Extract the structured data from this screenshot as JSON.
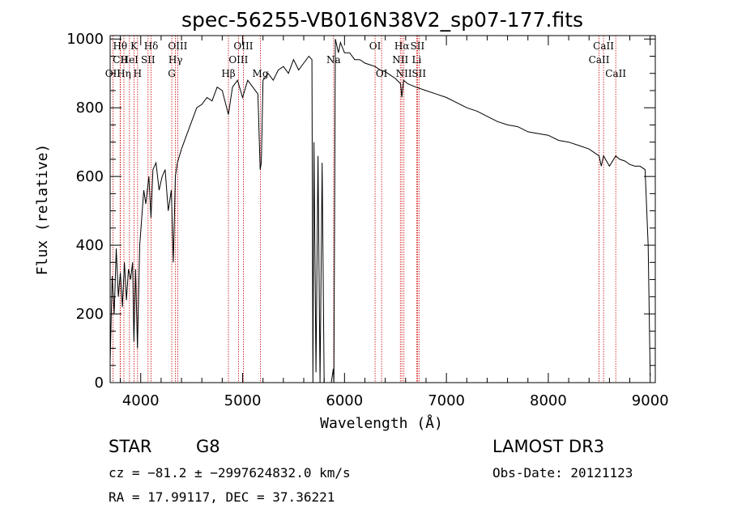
{
  "chart_data": {
    "type": "line",
    "title": "spec-56255-VB016N38V2_sp07-177.fits",
    "xlabel": "Wavelength (Å)",
    "ylabel": "Flux (relative)",
    "xlim": [
      3700,
      9050
    ],
    "ylim": [
      0,
      1010
    ],
    "xticks": [
      4000,
      5000,
      6000,
      7000,
      8000,
      9000
    ],
    "yticks": [
      0,
      200,
      400,
      600,
      800,
      1000
    ],
    "series": [
      {
        "name": "spectrum",
        "x": [
          3700,
          3720,
          3740,
          3760,
          3780,
          3800,
          3820,
          3840,
          3860,
          3880,
          3900,
          3920,
          3933,
          3950,
          3968,
          3990,
          4010,
          4030,
          4050,
          4080,
          4101,
          4120,
          4150,
          4180,
          4210,
          4240,
          4270,
          4300,
          4320,
          4340,
          4360,
          4400,
          4450,
          4500,
          4550,
          4600,
          4650,
          4700,
          4750,
          4800,
          4861,
          4900,
          4950,
          5000,
          5050,
          5100,
          5150,
          5172,
          5183,
          5200,
          5250,
          5300,
          5350,
          5400,
          5450,
          5500,
          5550,
          5600,
          5650,
          5680,
          5690,
          5700,
          5720,
          5740,
          5760,
          5780,
          5800,
          5830,
          5850,
          5870,
          5890,
          5896,
          5910,
          5940,
          5960,
          6000,
          6050,
          6100,
          6150,
          6200,
          6250,
          6300,
          6350,
          6400,
          6450,
          6500,
          6550,
          6563,
          6580,
          6620,
          6700,
          6800,
          6900,
          7000,
          7100,
          7200,
          7300,
          7400,
          7500,
          7600,
          7700,
          7800,
          7900,
          8000,
          8100,
          8200,
          8300,
          8400,
          8498,
          8520,
          8542,
          8600,
          8662,
          8700,
          8750,
          8800,
          8850,
          8900,
          8950,
          8980,
          9000
        ],
        "y": [
          60,
          310,
          200,
          390,
          250,
          320,
          220,
          350,
          240,
          330,
          300,
          350,
          120,
          330,
          100,
          400,
          480,
          560,
          520,
          600,
          480,
          620,
          640,
          560,
          600,
          620,
          500,
          560,
          350,
          600,
          640,
          680,
          720,
          760,
          800,
          810,
          830,
          820,
          860,
          850,
          780,
          860,
          880,
          830,
          880,
          860,
          840,
          620,
          640,
          880,
          900,
          880,
          910,
          920,
          900,
          940,
          910,
          930,
          950,
          940,
          0,
          700,
          30,
          660,
          0,
          640,
          0,
          0,
          0,
          0,
          40,
          0,
          1000,
          960,
          990,
          960,
          960,
          940,
          940,
          930,
          925,
          920,
          910,
          905,
          895,
          885,
          870,
          830,
          880,
          870,
          860,
          850,
          840,
          830,
          815,
          800,
          790,
          775,
          760,
          750,
          745,
          730,
          725,
          720,
          705,
          700,
          690,
          680,
          660,
          630,
          660,
          630,
          660,
          650,
          645,
          635,
          630,
          630,
          620,
          400,
          20
        ]
      }
    ],
    "line_markers": [
      {
        "label": "Hθ",
        "x": 3798,
        "row": 1
      },
      {
        "label": "CII",
        "x": 3800,
        "row": 2
      },
      {
        "label": "OII",
        "x": 3727,
        "row": 3
      },
      {
        "label": "K",
        "x": 3934,
        "row": 1
      },
      {
        "label": "HeI",
        "x": 3889,
        "row": 2
      },
      {
        "label": "Hη",
        "x": 3835,
        "row": 3
      },
      {
        "label": "Hδ",
        "x": 4102,
        "row": 1
      },
      {
        "label": "SII",
        "x": 4072,
        "row": 2
      },
      {
        "label": "H",
        "x": 3969,
        "row": 3
      },
      {
        "label": "OIII",
        "x": 4363,
        "row": 1
      },
      {
        "label": "Hγ",
        "x": 4341,
        "row": 2
      },
      {
        "label": "G",
        "x": 4305,
        "row": 3
      },
      {
        "label": "Hβ",
        "x": 4861,
        "row": 3
      },
      {
        "label": "OIII",
        "x": 5007,
        "row": 1
      },
      {
        "label": "OIII",
        "x": 4959,
        "row": 2
      },
      {
        "label": "Mg",
        "x": 5175,
        "row": 3
      },
      {
        "label": "Na",
        "x": 5893,
        "row": 2
      },
      {
        "label": "OI",
        "x": 6300,
        "row": 1
      },
      {
        "label": "OI",
        "x": 6364,
        "row": 3
      },
      {
        "label": "Hα",
        "x": 6563,
        "row": 1
      },
      {
        "label": "NII",
        "x": 6548,
        "row": 2
      },
      {
        "label": "NII",
        "x": 6583,
        "row": 3
      },
      {
        "label": "SII",
        "x": 6716,
        "row": 1
      },
      {
        "label": "Li",
        "x": 6708,
        "row": 2
      },
      {
        "label": "SII",
        "x": 6731,
        "row": 3
      },
      {
        "label": "CaII",
        "x": 8542,
        "row": 1
      },
      {
        "label": "CaII",
        "x": 8498,
        "row": 2
      },
      {
        "label": "CaII",
        "x": 8662,
        "row": 3
      }
    ],
    "grid": false
  },
  "info": {
    "object_class": "STAR",
    "subclass": "G8",
    "survey": "LAMOST DR3",
    "redshift_line": "cz = −81.2 ± −2997624832.0 km/s",
    "obs_date": "Obs-Date: 20121123",
    "coords_line": "RA =  17.99117, DEC =  37.36221"
  },
  "colors": {
    "axes": "#000000",
    "spectrum": "#000000",
    "markers": "#cc0000"
  }
}
